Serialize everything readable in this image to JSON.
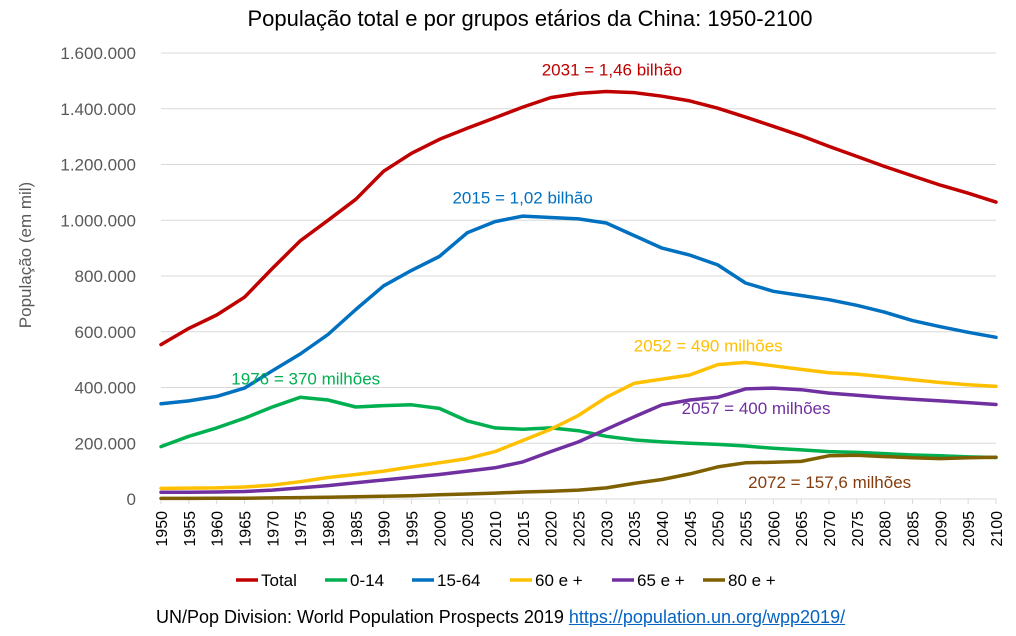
{
  "chart_data": {
    "type": "line",
    "title": "População total e por grupos etários da China: 1950-2100",
    "ylabel": "População (em mil)",
    "xlabel": "",
    "xlim": [
      1950,
      2100
    ],
    "ylim": [
      0,
      1600000
    ],
    "y_ticks": [
      0,
      200000,
      400000,
      600000,
      800000,
      1000000,
      1200000,
      1400000,
      1600000
    ],
    "y_tick_labels": [
      "0",
      "200.000",
      "400.000",
      "600.000",
      "800.000",
      "1.000.000",
      "1.200.000",
      "1.400.000",
      "1.600.000"
    ],
    "x_ticks": [
      1950,
      1955,
      1960,
      1965,
      1970,
      1975,
      1980,
      1985,
      1990,
      1995,
      2000,
      2005,
      2010,
      2015,
      2020,
      2025,
      2030,
      2035,
      2040,
      2045,
      2050,
      2055,
      2060,
      2065,
      2070,
      2075,
      2080,
      2085,
      2090,
      2095,
      2100
    ],
    "grid": "horizontal",
    "legend_position": "bottom",
    "x": [
      1950,
      1955,
      1960,
      1965,
      1970,
      1975,
      1980,
      1985,
      1990,
      1995,
      2000,
      2005,
      2010,
      2015,
      2020,
      2025,
      2030,
      2035,
      2040,
      2045,
      2050,
      2055,
      2060,
      2065,
      2070,
      2075,
      2080,
      2085,
      2090,
      2095,
      2100
    ],
    "series": [
      {
        "name": "Total",
        "color": "#c00000",
        "values": [
          554000,
          612000,
          660000,
          724000,
          827000,
          926000,
          1000000,
          1075000,
          1176000,
          1240000,
          1290000,
          1330000,
          1368000,
          1406000,
          1440000,
          1455000,
          1462000,
          1458000,
          1445000,
          1428000,
          1402000,
          1370000,
          1337000,
          1303000,
          1265000,
          1229000,
          1193000,
          1159000,
          1126000,
          1097000,
          1065000
        ]
      },
      {
        "name": "0-14",
        "color": "#00b050",
        "values": [
          188000,
          225000,
          255000,
          290000,
          330000,
          365000,
          355000,
          330000,
          335000,
          338000,
          325000,
          280000,
          255000,
          250000,
          255000,
          245000,
          225000,
          212000,
          205000,
          200000,
          196000,
          190000,
          182000,
          176000,
          170000,
          167000,
          163000,
          158000,
          155000,
          151000,
          149000
        ]
      },
      {
        "name": "15-64",
        "color": "#0070c0",
        "values": [
          342000,
          352000,
          368000,
          398000,
          460000,
          520000,
          590000,
          680000,
          765000,
          820000,
          870000,
          955000,
          995000,
          1015000,
          1010000,
          1005000,
          990000,
          945000,
          900000,
          875000,
          840000,
          775000,
          745000,
          730000,
          715000,
          695000,
          670000,
          640000,
          618000,
          598000,
          580000
        ]
      },
      {
        "name": "60 e +",
        "color": "#ffc000",
        "values": [
          38000,
          39000,
          40000,
          43000,
          50000,
          62000,
          77000,
          88000,
          100000,
          115000,
          130000,
          145000,
          170000,
          210000,
          250000,
          300000,
          365000,
          415000,
          430000,
          445000,
          482000,
          490000,
          478000,
          465000,
          453000,
          448000,
          438000,
          428000,
          418000,
          410000,
          404000
        ]
      },
      {
        "name": "65 e +",
        "color": "#7030a0",
        "values": [
          24000,
          24000,
          25000,
          27000,
          32000,
          40000,
          48000,
          58000,
          68000,
          78000,
          88000,
          100000,
          112000,
          133000,
          170000,
          205000,
          250000,
          295000,
          338000,
          355000,
          365000,
          395000,
          398000,
          392000,
          380000,
          372000,
          364000,
          358000,
          352000,
          346000,
          339000
        ]
      },
      {
        "name": "80 e +",
        "color": "#7f6000",
        "values": [
          2000,
          2000,
          2500,
          3000,
          4000,
          5000,
          6000,
          8000,
          10000,
          12000,
          15000,
          18000,
          21000,
          25000,
          28000,
          32000,
          40000,
          56000,
          70000,
          90000,
          115000,
          130000,
          132000,
          135000,
          155000,
          157000,
          152000,
          148000,
          145000,
          148000,
          150000
        ]
      }
    ],
    "annotations": [
      {
        "text": "2031 = 1,46 bilhão",
        "color": "#c00000"
      },
      {
        "text": "2015 = 1,02 bilhão",
        "color": "#0070c0"
      },
      {
        "text": "1976 = 370 milhões",
        "color": "#00b050"
      },
      {
        "text": "2052 = 490 milhões",
        "color": "#ffc000"
      },
      {
        "text": "2057 = 400 milhões",
        "color": "#7030a0"
      },
      {
        "text": "2072 = 157,6 milhões",
        "color": "#843c0c"
      }
    ]
  },
  "source": {
    "text": "UN/Pop Division: World Population Prospects 2019 ",
    "link": "https://population.un.org/wpp2019/"
  }
}
